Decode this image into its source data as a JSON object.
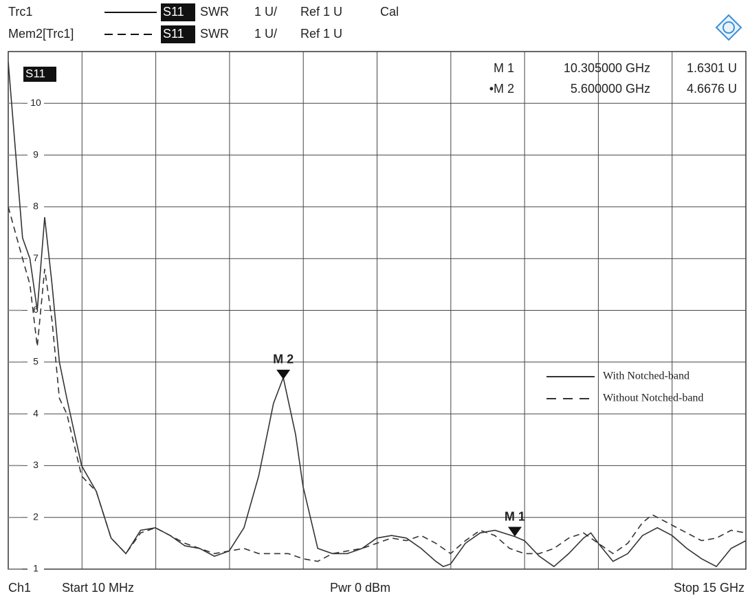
{
  "header": {
    "traces": [
      {
        "name": "Trc1",
        "param": "S11",
        "format": "SWR",
        "scale": "1 U/",
        "ref": "Ref 1 U",
        "status": "Cal"
      },
      {
        "name": "Mem2[Trc1]",
        "param": "S11",
        "format": "SWR",
        "scale": "1 U/",
        "ref": "Ref 1 U"
      }
    ]
  },
  "chart_data": {
    "type": "line",
    "label": "S11",
    "xlim": [
      0.01,
      15
    ],
    "ylim": [
      1,
      11
    ],
    "yticks": [
      1,
      2,
      3,
      4,
      5,
      6,
      7,
      8,
      9,
      10
    ],
    "grid": true,
    "legend_position": "right",
    "series": [
      {
        "name": "With Notched-band",
        "color": "#333333",
        "dash": false,
        "x": [
          0.01,
          0.3,
          0.45,
          0.6,
          0.75,
          0.9,
          1.05,
          1.2,
          1.5,
          1.8,
          2.1,
          2.4,
          2.7,
          3.0,
          3.3,
          3.6,
          3.9,
          4.2,
          4.5,
          4.8,
          5.1,
          5.4,
          5.6,
          5.85,
          6.0,
          6.3,
          6.6,
          6.9,
          7.2,
          7.5,
          7.8,
          8.1,
          8.4,
          8.7,
          8.85,
          9.0,
          9.3,
          9.6,
          9.9,
          10.305,
          10.5,
          10.8,
          11.1,
          11.4,
          11.7,
          11.85,
          12.0,
          12.3,
          12.6,
          12.9,
          13.2,
          13.5,
          13.8,
          14.1,
          14.4,
          14.7,
          15
        ],
        "values": [
          10.8,
          7.4,
          7.0,
          6.0,
          7.8,
          6.5,
          5.0,
          4.3,
          3.0,
          2.5,
          1.6,
          1.3,
          1.75,
          1.8,
          1.65,
          1.45,
          1.4,
          1.25,
          1.35,
          1.8,
          2.8,
          4.2,
          4.7,
          3.6,
          2.6,
          1.4,
          1.3,
          1.3,
          1.4,
          1.6,
          1.65,
          1.6,
          1.4,
          1.15,
          1.05,
          1.1,
          1.5,
          1.7,
          1.75,
          1.63,
          1.55,
          1.25,
          1.05,
          1.3,
          1.6,
          1.7,
          1.5,
          1.15,
          1.3,
          1.65,
          1.8,
          1.65,
          1.4,
          1.2,
          1.05,
          1.4,
          1.55
        ]
      },
      {
        "name": "Without Notched-band",
        "color": "#333333",
        "dash": true,
        "x": [
          0.01,
          0.3,
          0.45,
          0.6,
          0.75,
          0.9,
          1.05,
          1.2,
          1.5,
          1.8,
          2.1,
          2.4,
          2.7,
          3.0,
          3.3,
          3.6,
          3.9,
          4.2,
          4.5,
          4.8,
          5.1,
          5.4,
          5.7,
          6.0,
          6.3,
          6.6,
          6.9,
          7.2,
          7.5,
          7.8,
          8.1,
          8.4,
          8.7,
          9.0,
          9.3,
          9.6,
          9.9,
          10.2,
          10.5,
          10.8,
          11.1,
          11.4,
          11.7,
          12.0,
          12.3,
          12.6,
          12.9,
          13.1,
          13.5,
          13.8,
          14.1,
          14.4,
          14.7,
          15
        ],
        "values": [
          8.0,
          7.0,
          6.5,
          5.3,
          6.8,
          5.8,
          4.3,
          4.0,
          2.8,
          2.5,
          1.6,
          1.3,
          1.7,
          1.8,
          1.65,
          1.5,
          1.4,
          1.3,
          1.35,
          1.4,
          1.3,
          1.3,
          1.3,
          1.2,
          1.15,
          1.3,
          1.35,
          1.4,
          1.5,
          1.6,
          1.55,
          1.65,
          1.5,
          1.3,
          1.55,
          1.75,
          1.65,
          1.4,
          1.3,
          1.3,
          1.4,
          1.6,
          1.7,
          1.5,
          1.3,
          1.5,
          1.9,
          2.05,
          1.85,
          1.7,
          1.55,
          1.6,
          1.75,
          1.7
        ]
      }
    ],
    "markers": [
      {
        "name": "M 1",
        "list_name": "M 1",
        "x": 10.305,
        "y": 1.6301,
        "x_label": "10.305000 GHz",
        "y_label": "1.6301 U"
      },
      {
        "name": "M 2",
        "list_name": "•M 2",
        "x": 5.6,
        "y": 4.6676,
        "x_label": "5.600000 GHz",
        "y_label": "4.6676 U"
      }
    ]
  },
  "footer": {
    "channel": "Ch1",
    "start": "Start 10 MHz",
    "power": "Pwr 0 dBm",
    "stop": "Stop 15 GHz"
  }
}
